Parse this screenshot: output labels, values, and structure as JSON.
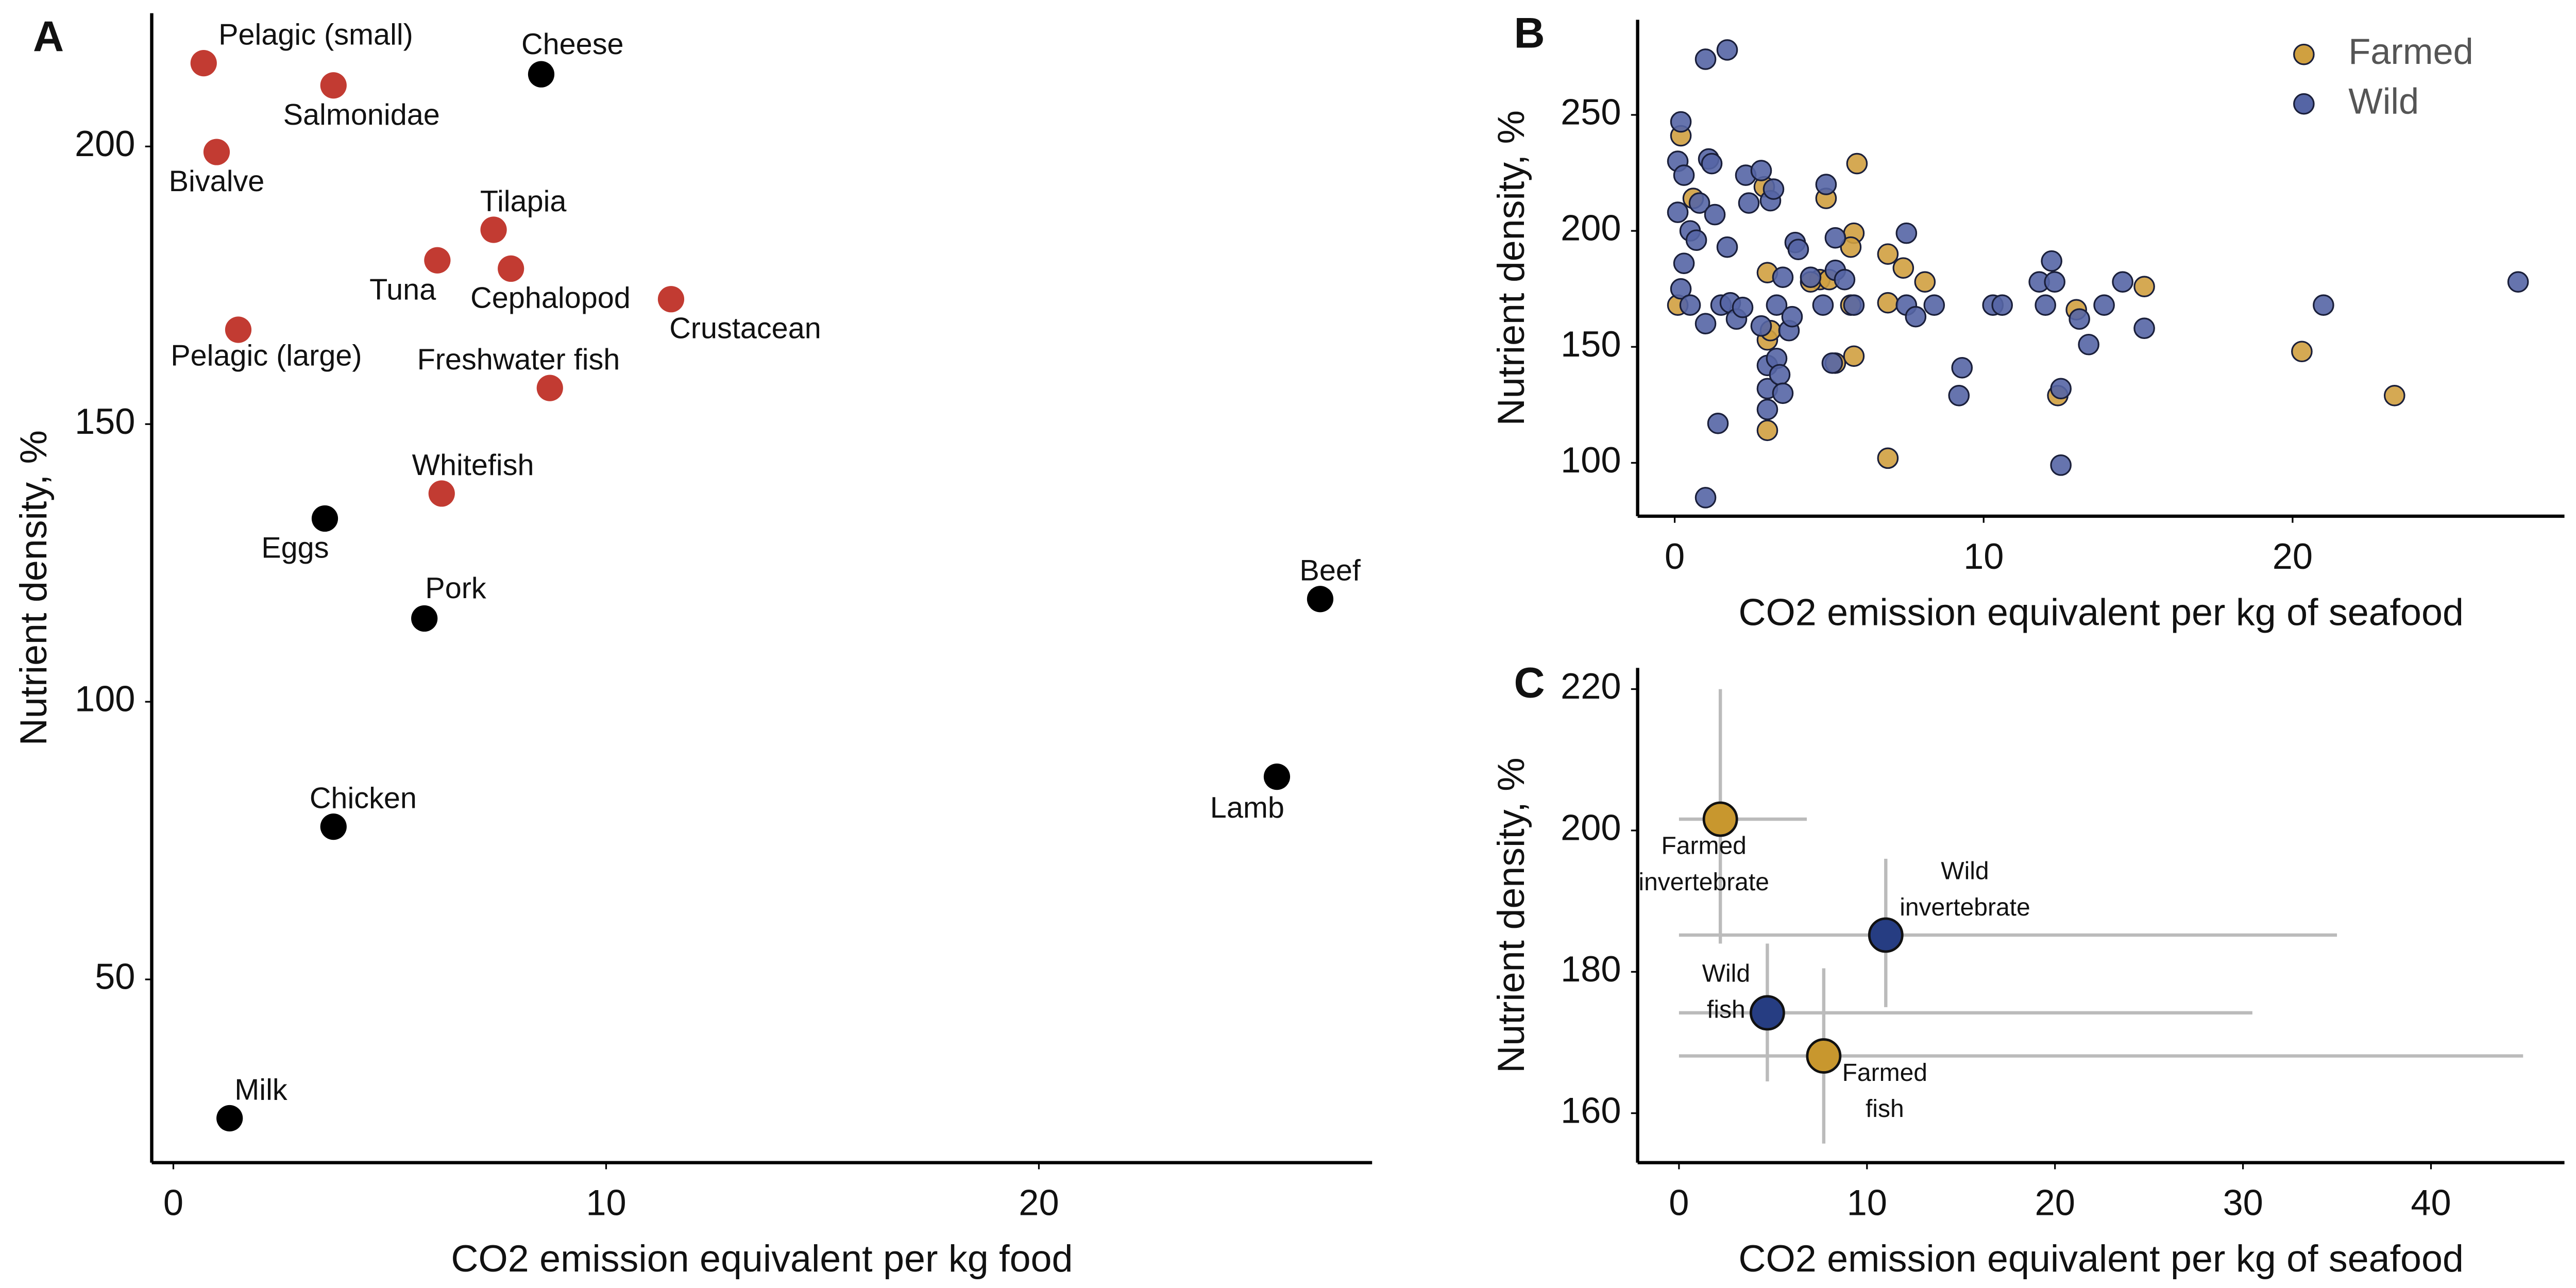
{
  "chart_data": [
    {
      "type": "scatter",
      "panel": "A",
      "x_label": "CO2 emission equivalent per kg food",
      "y_label": "Nutrient density, %",
      "xlim": [
        -0.5,
        27.7
      ],
      "ylim": [
        17,
        224
      ],
      "xticks": [
        0,
        10,
        20
      ],
      "yticks": [
        50,
        100,
        150,
        200
      ],
      "point_labels": [
        "Pelagic (small)",
        "Salmonidae",
        "Bivalve",
        "Cheese",
        "Tilapia",
        "Tuna",
        "Cephalopod",
        "Crustacean",
        "Pelagic (large)",
        "Freshwater fish",
        "Whitefish",
        "Eggs",
        "Pork",
        "Beef",
        "Lamb",
        "Chicken",
        "Milk"
      ],
      "x": [
        0.7,
        3.7,
        1.0,
        8.5,
        7.4,
        6.1,
        7.8,
        11.5,
        1.5,
        8.7,
        6.2,
        3.5,
        5.8,
        26.5,
        25.5,
        3.7,
        1.3
      ],
      "values": [
        215,
        211,
        199,
        213,
        185,
        179.5,
        178,
        172.5,
        167,
        156.5,
        137.5,
        133,
        115,
        118.5,
        86.5,
        77.5,
        25
      ],
      "colors": [
        "#c23b32",
        "#c23b32",
        "#c23b32",
        "#000000",
        "#c23b32",
        "#c23b32",
        "#c23b32",
        "#c23b32",
        "#c23b32",
        "#c23b32",
        "#c23b32",
        "#000000",
        "#000000",
        "#000000",
        "#000000",
        "#000000",
        "#000000"
      ]
    },
    {
      "type": "scatter",
      "panel": "B",
      "x_label": "CO2 emission equivalent per kg of seafood",
      "y_label": "Nutrient density, %",
      "xlim": [
        -1.2,
        28.8
      ],
      "ylim": [
        77,
        291
      ],
      "xticks": [
        0,
        10,
        20
      ],
      "yticks": [
        100,
        150,
        200,
        250
      ],
      "legend": "top-right",
      "series": [
        {
          "name": "Farmed",
          "color": "#d0a040",
          "x": [
            0.2,
            0.1,
            0.6,
            2.9,
            3.0,
            3.0,
            3.0,
            3.1,
            4.7,
            4.4,
            4.9,
            5.2,
            5.0,
            5.8,
            5.7,
            5.9,
            5.8,
            5.7,
            6.9,
            6.9,
            6.9,
            7.4,
            8.1,
            12.4,
            13.0,
            15.2,
            20.3,
            23.3
          ],
          "values": [
            241,
            168,
            214,
            219,
            182,
            153,
            114,
            157,
            179,
            178,
            214,
            143,
            179,
            199,
            193,
            229,
            146,
            168,
            190,
            169,
            102,
            184,
            178,
            129,
            166,
            176,
            148,
            129
          ]
        },
        {
          "name": "Wild",
          "color": "#5565a5",
          "x": [
            0.1,
            0.1,
            0.2,
            0.2,
            0.3,
            0.3,
            0.5,
            0.5,
            0.7,
            0.8,
            1.0,
            1.0,
            1.1,
            1.2,
            1.3,
            1.4,
            1.5,
            1.7,
            1.7,
            1.8,
            2.0,
            2.2,
            2.3,
            2.4,
            2.8,
            2.8,
            3.0,
            3.0,
            3.0,
            3.1,
            3.2,
            3.3,
            3.3,
            3.4,
            3.5,
            3.5,
            3.7,
            3.8,
            3.9,
            4.0,
            4.4,
            4.8,
            4.9,
            5.1,
            5.2,
            5.2,
            5.5,
            5.8,
            7.5,
            7.5,
            7.8,
            8.4,
            9.3,
            9.2,
            10.3,
            10.6,
            11.8,
            12.0,
            12.3,
            12.2,
            12.5,
            12.5,
            13.1,
            13.4,
            13.9,
            14.5,
            15.2,
            21.0,
            27.3,
            1.0
          ],
          "values": [
            208,
            230,
            247,
            175,
            224,
            186,
            168,
            200,
            196,
            212,
            274,
            160,
            231,
            229,
            207,
            117,
            168,
            193,
            278,
            169,
            162,
            167,
            224,
            212,
            226,
            159,
            142,
            132,
            123,
            213,
            218,
            145,
            168,
            138,
            180,
            130,
            157,
            163,
            195,
            192,
            180,
            168,
            220,
            143,
            197,
            183,
            179,
            168,
            199,
            168,
            163,
            168,
            141,
            129,
            168,
            168,
            178,
            168,
            178,
            187,
            99,
            132,
            162,
            151,
            168,
            178,
            158,
            168,
            178,
            85
          ]
        }
      ]
    },
    {
      "type": "scatter",
      "panel": "C",
      "x_label": "CO2 emission equivalent per kg of seafood",
      "y_label": "Nutrient density, %",
      "xlim": [
        -2.2,
        47.1
      ],
      "ylim": [
        153,
        223
      ],
      "xticks": [
        0,
        10,
        20,
        30,
        40
      ],
      "yticks": [
        160,
        180,
        200,
        220
      ],
      "points": [
        {
          "label": [
            "Farmed",
            "invertebrate"
          ],
          "color": "#c8972e",
          "x": 2.2,
          "y": 201.6,
          "x_low": 0,
          "x_high": 6.8,
          "y_low": 184,
          "y_high": 220
        },
        {
          "label": [
            "Wild",
            "invertebrate"
          ],
          "color": "#263d82",
          "x": 11.0,
          "y": 185.2,
          "x_low": 0,
          "x_high": 35,
          "y_low": 175,
          "y_high": 196
        },
        {
          "label": [
            "Wild",
            "fish"
          ],
          "color": "#263d82",
          "x": 4.7,
          "y": 174.2,
          "x_low": 0,
          "x_high": 30.5,
          "y_low": 164.5,
          "y_high": 184
        },
        {
          "label": [
            "Farmed",
            "fish"
          ],
          "color": "#c8972e",
          "x": 7.7,
          "y": 168.1,
          "x_low": 0,
          "x_high": 44.9,
          "y_low": 155.7,
          "y_high": 180.5
        }
      ]
    }
  ]
}
